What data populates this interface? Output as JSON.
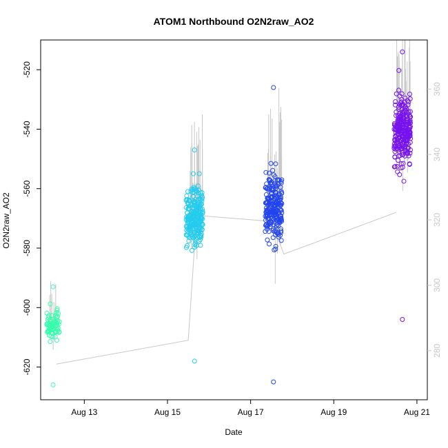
{
  "chart_data": {
    "type": "scatter",
    "title": "ATOM1 Northbound O2N2raw_AO2",
    "xlabel": "Date",
    "ylabel": "O2N2raw_AO2",
    "x_ticks": [
      "Aug 13",
      "Aug 15",
      "Aug 17",
      "Aug 19",
      "Aug 21"
    ],
    "x_tick_days": [
      13,
      15,
      17,
      19,
      21
    ],
    "xlim_days": [
      11.95,
      21.25
    ],
    "ylim": [
      -631,
      -510
    ],
    "y_ticks": [
      -620,
      -600,
      -580,
      -560,
      -540,
      -520
    ],
    "y2lim": [
      265,
      375
    ],
    "y2_ticks": [
      280,
      300,
      320,
      340,
      360
    ],
    "y2_color": "#c8c8c8",
    "grid": false,
    "secondary_line_color": "#c8c8c8",
    "secondary_line": [
      {
        "x": 12.33,
        "y": -619
      },
      {
        "x": 15.5,
        "y": -611
      },
      {
        "x": 15.7,
        "y": -569
      },
      {
        "x": 17.5,
        "y": -571
      },
      {
        "x": 17.8,
        "y": -582
      },
      {
        "x": 20.5,
        "y": -568
      }
    ],
    "clusters": [
      {
        "day_from": 12.1,
        "day_to": 12.4,
        "y_min": -626,
        "y_max": -593,
        "y_center": -606,
        "y_spread": 6,
        "n": 70,
        "color": "#33ffaa"
      },
      {
        "day_from": 15.45,
        "day_to": 15.85,
        "y_min": -618,
        "y_max": -547,
        "y_center": -570,
        "y_spread": 13,
        "n": 230,
        "color": "#22ccee"
      },
      {
        "day_from": 17.35,
        "day_to": 17.75,
        "y_min": -625,
        "y_max": -526,
        "y_center": -566,
        "y_spread": 14,
        "n": 230,
        "color": "#2244ee"
      },
      {
        "day_from": 20.45,
        "day_to": 20.85,
        "y_min": -604,
        "y_max": -514,
        "y_center": -540,
        "y_spread": 14,
        "n": 260,
        "color": "#7711ee"
      }
    ]
  }
}
